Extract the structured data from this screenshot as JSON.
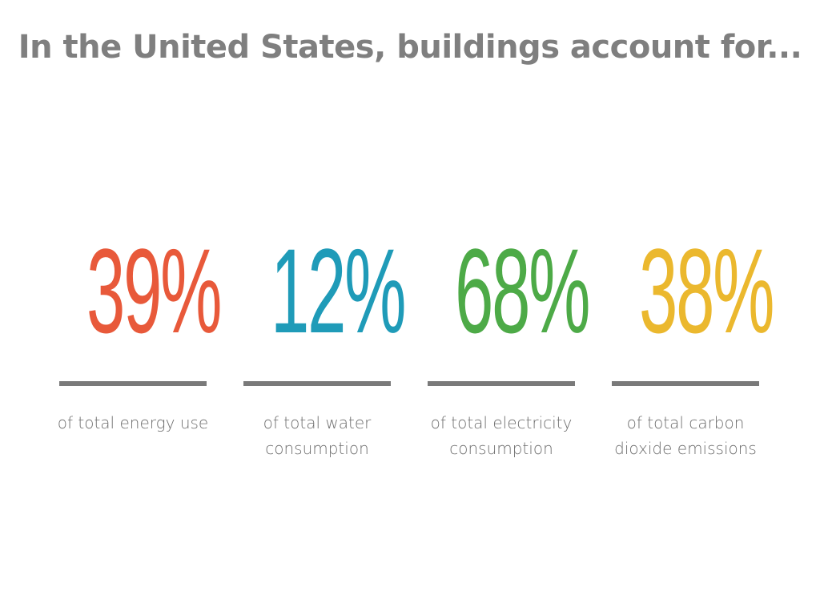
{
  "title": "In the United States, buildings account for...",
  "stats": [
    {
      "value": "39%",
      "label": "of total energy use",
      "color": "#e8593a"
    },
    {
      "value": "12%",
      "label": "of total water consumption",
      "color": "#1f9bb8"
    },
    {
      "value": "68%",
      "label": "of total electricity consumption",
      "color": "#4daa47"
    },
    {
      "value": "38%",
      "label": "of total carbon dioxide emissions",
      "color": "#ebb82e"
    }
  ]
}
